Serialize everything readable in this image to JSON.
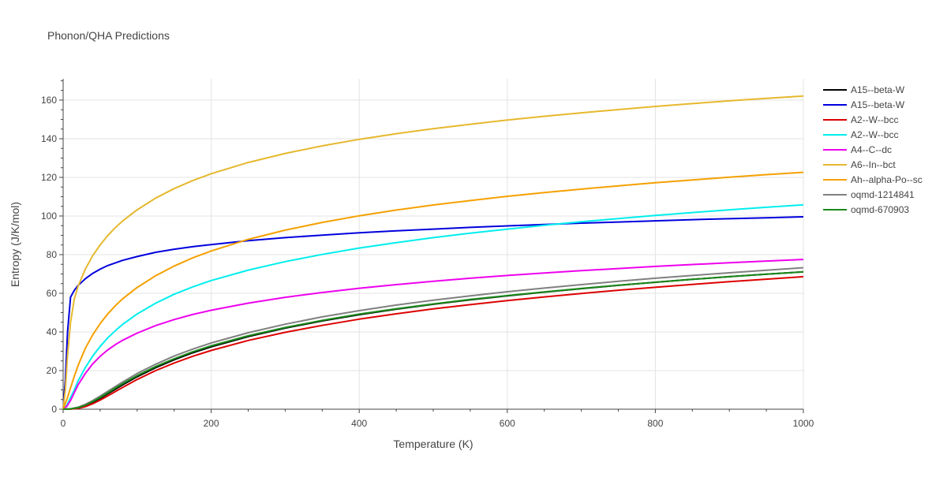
{
  "chart_data": {
    "type": "line",
    "title": "Phonon/QHA Predictions",
    "xlabel": "Temperature (K)",
    "ylabel": "Entropy (J/K/mol)",
    "xlim": [
      0,
      1000
    ],
    "ylim": [
      0,
      171
    ],
    "x_ticks": [
      0,
      200,
      400,
      600,
      800,
      1000
    ],
    "y_ticks": [
      0,
      20,
      40,
      60,
      80,
      100,
      120,
      140,
      160
    ],
    "grid": true,
    "legend_position": "right",
    "series": [
      {
        "name": "A15--beta-W",
        "color": "#000000",
        "points": [
          [
            0,
            0
          ],
          [
            10,
            0.1
          ],
          [
            20,
            0.6
          ],
          [
            30,
            1.8
          ],
          [
            40,
            3.5
          ],
          [
            50,
            5.6
          ],
          [
            60,
            7.9
          ],
          [
            70,
            10.2
          ],
          [
            80,
            12.5
          ],
          [
            100,
            16.8
          ],
          [
            125,
            21.5
          ],
          [
            150,
            25.6
          ],
          [
            175,
            29.2
          ],
          [
            200,
            32.3
          ],
          [
            250,
            37.6
          ],
          [
            300,
            42.0
          ],
          [
            350,
            45.7
          ],
          [
            400,
            48.9
          ],
          [
            450,
            51.8
          ],
          [
            500,
            54.3
          ],
          [
            550,
            56.6
          ],
          [
            600,
            58.7
          ],
          [
            650,
            60.6
          ],
          [
            700,
            62.4
          ],
          [
            750,
            64.1
          ],
          [
            800,
            65.7
          ],
          [
            850,
            67.2
          ],
          [
            900,
            68.6
          ],
          [
            950,
            69.9
          ],
          [
            1000,
            71.1
          ]
        ]
      },
      {
        "name": "A15--beta-W",
        "color": "#0000dd",
        "points": [
          [
            0,
            0
          ],
          [
            3,
            15
          ],
          [
            6,
            40
          ],
          [
            10,
            58
          ],
          [
            15,
            61.5
          ],
          [
            20,
            64
          ],
          [
            30,
            67.5
          ],
          [
            40,
            70.3
          ],
          [
            50,
            72.5
          ],
          [
            60,
            74.3
          ],
          [
            80,
            77
          ],
          [
            100,
            79
          ],
          [
            125,
            81.2
          ],
          [
            150,
            82.8
          ],
          [
            175,
            84.1
          ],
          [
            200,
            85.2
          ],
          [
            250,
            87.2
          ],
          [
            300,
            88.8
          ],
          [
            350,
            90.1
          ],
          [
            400,
            91.3
          ],
          [
            450,
            92.3
          ],
          [
            500,
            93.2
          ],
          [
            550,
            94.1
          ],
          [
            600,
            94.9
          ],
          [
            650,
            95.6
          ],
          [
            700,
            96.3
          ],
          [
            750,
            96.9
          ],
          [
            800,
            97.5
          ],
          [
            850,
            98.1
          ],
          [
            900,
            98.6
          ],
          [
            950,
            99.1
          ],
          [
            1000,
            99.6
          ]
        ]
      },
      {
        "name": "A2--W--bcc",
        "color": "#dd0000",
        "points": [
          [
            0,
            0
          ],
          [
            10,
            0.05
          ],
          [
            20,
            0.4
          ],
          [
            30,
            1.3
          ],
          [
            40,
            2.8
          ],
          [
            50,
            4.7
          ],
          [
            60,
            6.8
          ],
          [
            70,
            9.0
          ],
          [
            80,
            11.2
          ],
          [
            100,
            15.4
          ],
          [
            125,
            20.0
          ],
          [
            150,
            23.9
          ],
          [
            175,
            27.4
          ],
          [
            200,
            30.4
          ],
          [
            250,
            35.6
          ],
          [
            300,
            39.8
          ],
          [
            350,
            43.4
          ],
          [
            400,
            46.6
          ],
          [
            450,
            49.4
          ],
          [
            500,
            51.9
          ],
          [
            550,
            54.1
          ],
          [
            600,
            56.2
          ],
          [
            650,
            58.1
          ],
          [
            700,
            59.9
          ],
          [
            750,
            61.6
          ],
          [
            800,
            63.1
          ],
          [
            850,
            64.6
          ],
          [
            900,
            66.0
          ],
          [
            950,
            67.3
          ],
          [
            1000,
            68.6
          ]
        ]
      },
      {
        "name": "A2--W--bcc",
        "color": "#00eeee",
        "points": [
          [
            0,
            0
          ],
          [
            5,
            2
          ],
          [
            10,
            6
          ],
          [
            15,
            10
          ],
          [
            20,
            14.5
          ],
          [
            30,
            21.5
          ],
          [
            40,
            27.5
          ],
          [
            50,
            32.5
          ],
          [
            60,
            36.8
          ],
          [
            70,
            40.5
          ],
          [
            80,
            43.8
          ],
          [
            100,
            49.3
          ],
          [
            125,
            54.9
          ],
          [
            150,
            59.5
          ],
          [
            175,
            63.3
          ],
          [
            200,
            66.6
          ],
          [
            250,
            72.0
          ],
          [
            300,
            76.4
          ],
          [
            350,
            80.1
          ],
          [
            400,
            83.4
          ],
          [
            450,
            86.2
          ],
          [
            500,
            88.8
          ],
          [
            550,
            91.1
          ],
          [
            600,
            93.2
          ],
          [
            650,
            95.2
          ],
          [
            700,
            97.0
          ],
          [
            750,
            98.7
          ],
          [
            800,
            100.3
          ],
          [
            850,
            101.8
          ],
          [
            900,
            103.2
          ],
          [
            950,
            104.5
          ],
          [
            1000,
            105.8
          ]
        ]
      },
      {
        "name": "A4--C--dc",
        "color": "#ee00ee",
        "points": [
          [
            0,
            0
          ],
          [
            5,
            1.5
          ],
          [
            10,
            4.5
          ],
          [
            15,
            8.5
          ],
          [
            20,
            12.5
          ],
          [
            30,
            18.5
          ],
          [
            40,
            23.5
          ],
          [
            50,
            27.4
          ],
          [
            60,
            30.6
          ],
          [
            70,
            33.3
          ],
          [
            80,
            35.6
          ],
          [
            100,
            39.4
          ],
          [
            125,
            43.3
          ],
          [
            150,
            46.4
          ],
          [
            175,
            49.0
          ],
          [
            200,
            51.2
          ],
          [
            250,
            54.9
          ],
          [
            300,
            57.9
          ],
          [
            350,
            60.4
          ],
          [
            400,
            62.6
          ],
          [
            450,
            64.5
          ],
          [
            500,
            66.2
          ],
          [
            550,
            67.8
          ],
          [
            600,
            69.2
          ],
          [
            650,
            70.5
          ],
          [
            700,
            71.7
          ],
          [
            750,
            72.8
          ],
          [
            800,
            73.9
          ],
          [
            850,
            74.9
          ],
          [
            900,
            75.8
          ],
          [
            950,
            76.7
          ],
          [
            1000,
            77.5
          ]
        ]
      },
      {
        "name": "A6--In--bct",
        "color": "#e6b82e",
        "points": [
          [
            0,
            0
          ],
          [
            3,
            10
          ],
          [
            6,
            28
          ],
          [
            10,
            45
          ],
          [
            15,
            57
          ],
          [
            20,
            63.5
          ],
          [
            30,
            72.5
          ],
          [
            40,
            79.5
          ],
          [
            50,
            85
          ],
          [
            60,
            89.8
          ],
          [
            70,
            93.8
          ],
          [
            80,
            97.3
          ],
          [
            100,
            103.2
          ],
          [
            125,
            109.3
          ],
          [
            150,
            114.2
          ],
          [
            175,
            118.3
          ],
          [
            200,
            121.9
          ],
          [
            250,
            127.7
          ],
          [
            300,
            132.4
          ],
          [
            350,
            136.3
          ],
          [
            400,
            139.7
          ],
          [
            450,
            142.6
          ],
          [
            500,
            145.2
          ],
          [
            550,
            147.5
          ],
          [
            600,
            149.7
          ],
          [
            650,
            151.6
          ],
          [
            700,
            153.4
          ],
          [
            750,
            155.1
          ],
          [
            800,
            156.7
          ],
          [
            850,
            158.2
          ],
          [
            900,
            159.6
          ],
          [
            950,
            160.9
          ],
          [
            1000,
            162.1
          ]
        ]
      },
      {
        "name": "Ah--alpha-Po--sc",
        "color": "#f5a000",
        "points": [
          [
            0,
            0
          ],
          [
            5,
            5
          ],
          [
            10,
            11
          ],
          [
            15,
            17
          ],
          [
            20,
            22.5
          ],
          [
            30,
            31.5
          ],
          [
            40,
            38.5
          ],
          [
            50,
            44.3
          ],
          [
            60,
            49.2
          ],
          [
            70,
            53.4
          ],
          [
            80,
            57
          ],
          [
            100,
            63
          ],
          [
            125,
            69.1
          ],
          [
            150,
            74.1
          ],
          [
            175,
            78.3
          ],
          [
            200,
            81.9
          ],
          [
            250,
            87.9
          ],
          [
            300,
            92.7
          ],
          [
            350,
            96.7
          ],
          [
            400,
            100.1
          ],
          [
            450,
            103.1
          ],
          [
            500,
            105.7
          ],
          [
            550,
            108.0
          ],
          [
            600,
            110.2
          ],
          [
            650,
            112.1
          ],
          [
            700,
            113.9
          ],
          [
            750,
            115.6
          ],
          [
            800,
            117.2
          ],
          [
            850,
            118.7
          ],
          [
            900,
            120.1
          ],
          [
            950,
            121.4
          ],
          [
            1000,
            122.6
          ]
        ]
      },
      {
        "name": "oqmd-1214841",
        "color": "#808080",
        "points": [
          [
            0,
            0
          ],
          [
            10,
            0.2
          ],
          [
            20,
            1.0
          ],
          [
            30,
            2.5
          ],
          [
            40,
            4.5
          ],
          [
            50,
            6.8
          ],
          [
            60,
            9.2
          ],
          [
            70,
            11.6
          ],
          [
            80,
            14.0
          ],
          [
            100,
            18.5
          ],
          [
            125,
            23.3
          ],
          [
            150,
            27.5
          ],
          [
            175,
            31.1
          ],
          [
            200,
            34.3
          ],
          [
            250,
            39.6
          ],
          [
            300,
            44.0
          ],
          [
            350,
            47.8
          ],
          [
            400,
            51.0
          ],
          [
            450,
            53.9
          ],
          [
            500,
            56.4
          ],
          [
            550,
            58.7
          ],
          [
            600,
            60.8
          ],
          [
            650,
            62.7
          ],
          [
            700,
            64.5
          ],
          [
            750,
            66.2
          ],
          [
            800,
            67.8
          ],
          [
            850,
            69.2
          ],
          [
            900,
            70.6
          ],
          [
            950,
            71.9
          ],
          [
            1000,
            73.2
          ]
        ]
      },
      {
        "name": "oqmd-670903",
        "color": "#1a8a1a",
        "points": [
          [
            0,
            0
          ],
          [
            10,
            0.15
          ],
          [
            20,
            0.8
          ],
          [
            30,
            2.1
          ],
          [
            40,
            3.9
          ],
          [
            50,
            6.1
          ],
          [
            60,
            8.4
          ],
          [
            70,
            10.8
          ],
          [
            80,
            13.1
          ],
          [
            100,
            17.4
          ],
          [
            125,
            22.1
          ],
          [
            150,
            26.1
          ],
          [
            175,
            29.7
          ],
          [
            200,
            32.8
          ],
          [
            250,
            38.0
          ],
          [
            300,
            42.3
          ],
          [
            350,
            46.0
          ],
          [
            400,
            49.2
          ],
          [
            450,
            52.0
          ],
          [
            500,
            54.5
          ],
          [
            550,
            56.8
          ],
          [
            600,
            58.8
          ],
          [
            650,
            60.7
          ],
          [
            700,
            62.5
          ],
          [
            750,
            64.2
          ],
          [
            800,
            65.7
          ],
          [
            850,
            67.2
          ],
          [
            900,
            68.6
          ],
          [
            950,
            69.9
          ],
          [
            1000,
            71.1
          ]
        ]
      }
    ]
  }
}
